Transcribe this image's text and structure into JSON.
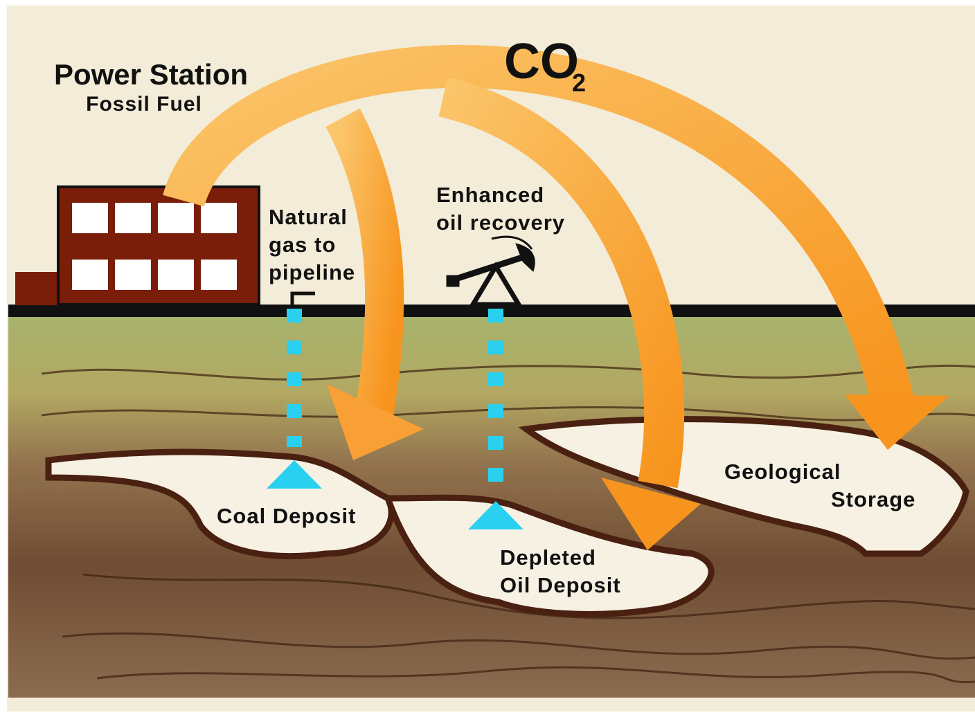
{
  "title": "Power Station",
  "subtitle": "Fossil Fuel",
  "gas": {
    "formula": "CO",
    "subscript": "2"
  },
  "labels": [
    {
      "lines": [
        "Natural",
        "gas to",
        "pipeline"
      ]
    },
    {
      "lines": [
        "Enhanced",
        "oil recovery"
      ]
    },
    {
      "lines": [
        "Coal Deposit"
      ]
    },
    {
      "lines": [
        "Depleted",
        "Oil Deposit"
      ]
    },
    {
      "lines": [
        "Geological",
        "Storage"
      ]
    }
  ]
}
